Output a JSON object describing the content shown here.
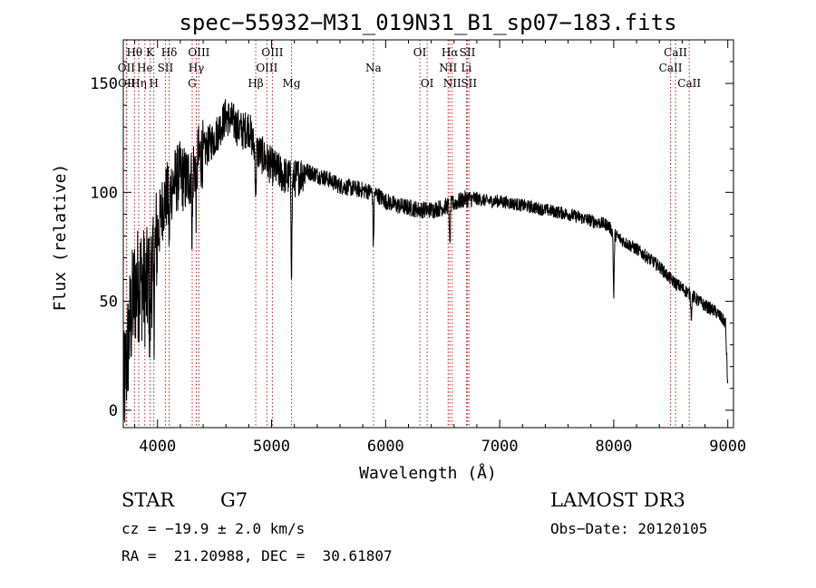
{
  "chart_data": {
    "type": "line",
    "title": "spec−55932−M31_019N31_B1_sp07−183.fits",
    "xlabel": "Wavelength (Å)",
    "ylabel": "Flux (relative)",
    "xlim": [
      3700,
      9050
    ],
    "ylim": [
      -8,
      170
    ],
    "x_ticks": [
      4000,
      5000,
      6000,
      7000,
      8000,
      9000
    ],
    "y_ticks": [
      0,
      50,
      100,
      150
    ],
    "line_color": "#000000",
    "marker_color": "#b22222",
    "lines": [
      {
        "label": "Hθ",
        "wave": 3798,
        "row": 0
      },
      {
        "label": "OII",
        "wave": 3727,
        "row": 1
      },
      {
        "label": "OII",
        "wave": 3730,
        "row": 2
      },
      {
        "label": "Hη",
        "wave": 3835,
        "row": 2
      },
      {
        "label": "He",
        "wave": 3889,
        "row": 1
      },
      {
        "label": "K",
        "wave": 3934,
        "row": 0
      },
      {
        "label": "H",
        "wave": 3968,
        "row": 2
      },
      {
        "label": "SII",
        "wave": 4069,
        "row": 1
      },
      {
        "label": "Hδ",
        "wave": 4102,
        "row": 0
      },
      {
        "label": "OIII",
        "wave": 4363,
        "row": 0
      },
      {
        "label": "Hγ",
        "wave": 4340,
        "row": 1
      },
      {
        "label": "G",
        "wave": 4304,
        "row": 2
      },
      {
        "label": "Hβ",
        "wave": 4861,
        "row": 2
      },
      {
        "label": "OIII",
        "wave": 5007,
        "row": 0
      },
      {
        "label": "OIII",
        "wave": 4959,
        "row": 1
      },
      {
        "label": "Mg",
        "wave": 5175,
        "row": 2
      },
      {
        "label": "Na",
        "wave": 5893,
        "row": 1
      },
      {
        "label": "OI",
        "wave": 6300,
        "row": 0
      },
      {
        "label": "OI",
        "wave": 6364,
        "row": 2
      },
      {
        "label": "Hα",
        "wave": 6563,
        "row": 0
      },
      {
        "label": "NII",
        "wave": 6548,
        "row": 1
      },
      {
        "label": "NII",
        "wave": 6584,
        "row": 2
      },
      {
        "label": "SII",
        "wave": 6717,
        "row": 0
      },
      {
        "label": "Li",
        "wave": 6708,
        "row": 1
      },
      {
        "label": "SII",
        "wave": 6731,
        "row": 2
      },
      {
        "label": "CaII",
        "wave": 8498,
        "row": 1
      },
      {
        "label": "CaII",
        "wave": 8542,
        "row": 0
      },
      {
        "label": "CaII",
        "wave": 8662,
        "row": 2
      }
    ],
    "spectrum_nodes": {
      "wave": [
        3700,
        3760,
        3800,
        3850,
        3900,
        3950,
        4000,
        4050,
        4100,
        4150,
        4200,
        4250,
        4300,
        4350,
        4400,
        4450,
        4500,
        4550,
        4600,
        4650,
        4700,
        4750,
        4800,
        4850,
        4900,
        5000,
        5100,
        5200,
        5300,
        5400,
        5500,
        5600,
        5700,
        5800,
        5900,
        6000,
        6100,
        6200,
        6300,
        6400,
        6500,
        6600,
        6700,
        6800,
        6900,
        7000,
        7200,
        7400,
        7600,
        7800,
        7950,
        8000,
        8100,
        8200,
        8300,
        8400,
        8500,
        8600,
        8700,
        8800,
        8900,
        8980,
        9000
      ],
      "flux": [
        5,
        40,
        55,
        60,
        55,
        65,
        80,
        95,
        100,
        105,
        108,
        105,
        110,
        115,
        118,
        122,
        125,
        130,
        135,
        133,
        130,
        128,
        130,
        120,
        118,
        112,
        108,
        106,
        110,
        108,
        106,
        103,
        102,
        101,
        100,
        96,
        94,
        93,
        92,
        92,
        93,
        95,
        97,
        97,
        96,
        96,
        94,
        92,
        90,
        87,
        85,
        81,
        77,
        74,
        70,
        66,
        60,
        56,
        52,
        48,
        45,
        40,
        10
      ]
    },
    "absorption_features": [
      {
        "wave": 3934,
        "depth": 30
      },
      {
        "wave": 3968,
        "depth": 25
      },
      {
        "wave": 4102,
        "depth": 20
      },
      {
        "wave": 4304,
        "depth": 30
      },
      {
        "wave": 4340,
        "depth": 20
      },
      {
        "wave": 4861,
        "depth": 20
      },
      {
        "wave": 5175,
        "depth": 40
      },
      {
        "wave": 5893,
        "depth": 25
      },
      {
        "wave": 6563,
        "depth": 20
      },
      {
        "wave": 8000,
        "depth": 30
      },
      {
        "wave": 8680,
        "depth": 10
      }
    ]
  },
  "info": {
    "class_label": "STAR",
    "subclass": "G7",
    "survey": "LAMOST DR3",
    "cz": "cz = −19.9 ± 2.0 km/s",
    "obs_date": "Obs−Date: 20120105",
    "radec": "RA =  21.20988, DEC =  30.61807"
  }
}
